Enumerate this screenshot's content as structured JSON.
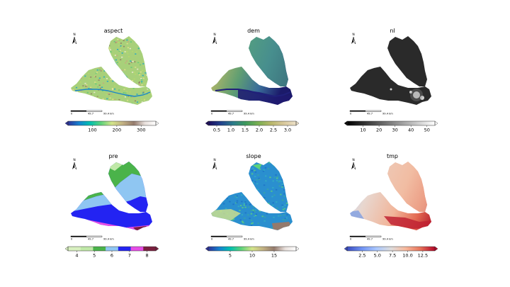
{
  "chart_data": [
    {
      "type": "heatmap",
      "title": "aspect",
      "colormap": "terrain",
      "colorbar_ticks": [
        "100",
        "200",
        "300"
      ],
      "colorbar_range": [
        0,
        360
      ],
      "north_label": "N",
      "scalebar_labels": [
        "0",
        "49.7",
        "99.4 km"
      ]
    },
    {
      "type": "heatmap",
      "title": "dem",
      "colormap": "gist_earth",
      "colorbar_ticks": [
        "0.5",
        "1.0",
        "1.5",
        "2.0",
        "2.5",
        "3.0"
      ],
      "colorbar_range": [
        0.2,
        3.3
      ],
      "north_label": "N",
      "scalebar_labels": [
        "0",
        "49.7",
        "99.4 km"
      ]
    },
    {
      "type": "heatmap",
      "title": "nl",
      "colormap": "gray",
      "colorbar_ticks": [
        "10",
        "20",
        "30",
        "40",
        "50"
      ],
      "colorbar_range": [
        0,
        55
      ],
      "north_label": "N",
      "scalebar_labels": [
        "0",
        "49.7",
        "99.4 km"
      ]
    },
    {
      "type": "heatmap",
      "title": "pre",
      "colormap": "discrete (light green, green, light blue, blue, magenta, maroon)",
      "colorbar_ticks": [
        "4",
        "5",
        "6",
        "7",
        "8"
      ],
      "colorbar_range": [
        3.5,
        8.5
      ],
      "north_label": "N",
      "scalebar_labels": [
        "0",
        "49.7",
        "99.4 km"
      ]
    },
    {
      "type": "heatmap",
      "title": "slope",
      "colormap": "terrain",
      "colorbar_ticks": [
        "5",
        "10",
        "15"
      ],
      "colorbar_range": [
        0,
        20
      ],
      "north_label": "N",
      "scalebar_labels": [
        "0",
        "49.7",
        "99.4 km"
      ]
    },
    {
      "type": "heatmap",
      "title": "tmp",
      "colormap": "coolwarm",
      "colorbar_ticks": [
        "2.5",
        "5.0",
        "7.5",
        "10.0",
        "12.5"
      ],
      "colorbar_range": [
        0,
        14.5
      ],
      "north_label": "N",
      "scalebar_labels": [
        "0",
        "49.7",
        "99.4 km"
      ]
    }
  ]
}
